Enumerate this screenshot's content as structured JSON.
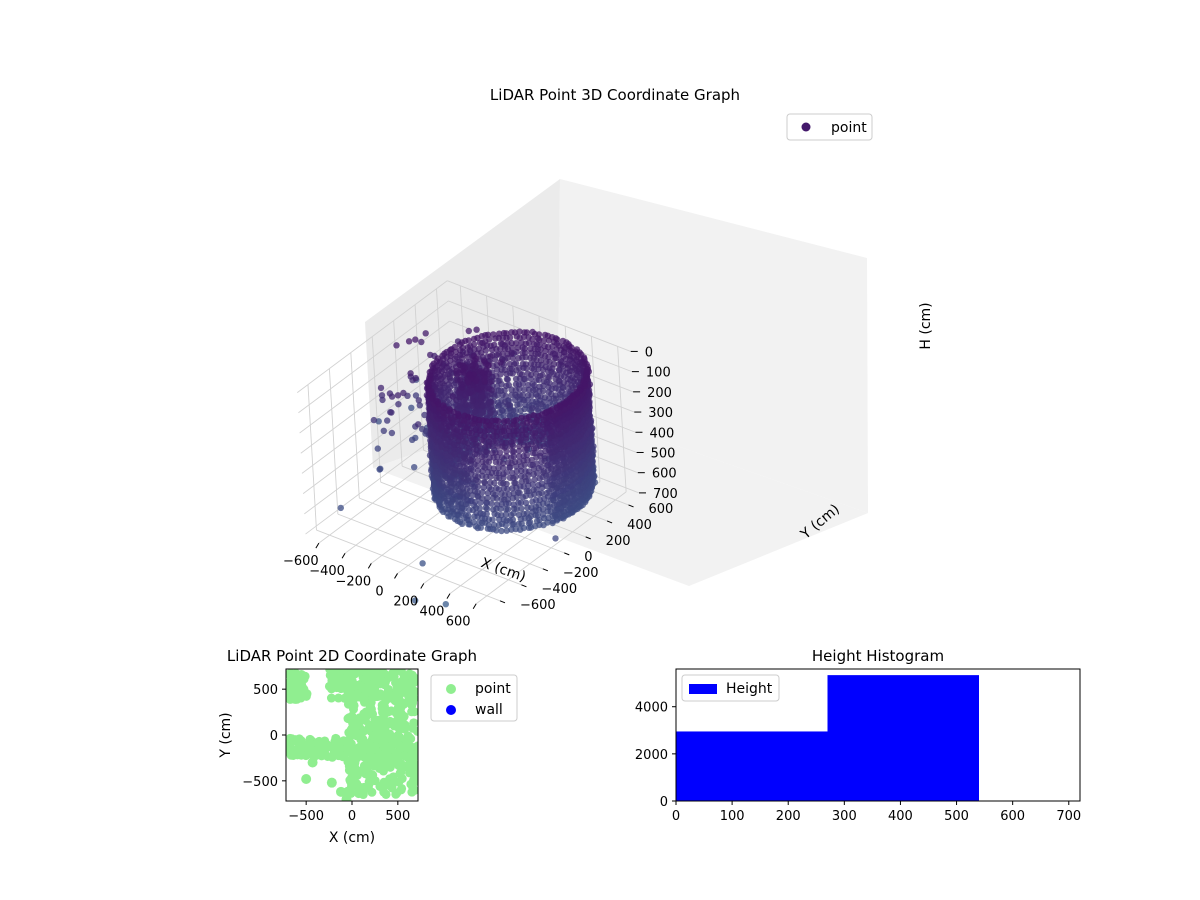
{
  "chart_data": [
    {
      "type": "scatter",
      "projection": "3d",
      "title": "LiDAR Point 3D Coordinate Graph",
      "xlabel": "X (cm)",
      "ylabel": "Y (cm)",
      "zlabel": "H (cm)",
      "xlim": [
        -700,
        700
      ],
      "ylim": [
        -700,
        700
      ],
      "zlim": [
        0,
        720
      ],
      "z_inverted": true,
      "xticks": [
        "−600",
        "−400",
        "−200",
        "0",
        "200",
        "400",
        "600"
      ],
      "yticks": [
        "−600",
        "−400",
        "−200",
        "0",
        "200",
        "400",
        "600"
      ],
      "zticks": [
        "0",
        "100",
        "200",
        "300",
        "400",
        "500",
        "600",
        "700"
      ],
      "grid": true,
      "legend": {
        "position": "upper-right",
        "entries": [
          {
            "label": "point",
            "color": "#44196b"
          }
        ]
      },
      "colormap": "viridis",
      "structure": {
        "ring": {
          "center": [
            250,
            100
          ],
          "radius": 470,
          "h_range": [
            0,
            540
          ]
        },
        "sparse_cluster": {
          "x_range": [
            -600,
            100
          ],
          "y_range": [
            -200,
            500
          ],
          "h_range": [
            0,
            540
          ]
        },
        "dense_column": {
          "center": [
            20,
            60
          ],
          "radius": 110,
          "h_range": [
            0,
            270
          ]
        }
      }
    },
    {
      "type": "scatter",
      "title": "LiDAR Point 2D Coordinate Graph",
      "xlabel": "X (cm)",
      "ylabel": "Y (cm)",
      "xlim": [
        -720,
        720
      ],
      "ylim": [
        -720,
        720
      ],
      "xticks": [
        "−500",
        "0",
        "500"
      ],
      "yticks": [
        "−500",
        "0",
        "500"
      ],
      "legend": {
        "position": "outside-right",
        "entries": [
          {
            "label": "point",
            "color": "#90ee90"
          },
          {
            "label": "wall",
            "color": "#0000ff"
          }
        ]
      },
      "series": [
        {
          "name": "point",
          "color": "#90ee90"
        },
        {
          "name": "wall",
          "color": "#0000ff",
          "count": 0
        }
      ]
    },
    {
      "type": "bar",
      "subtype": "histogram",
      "title": "Height Histogram",
      "xlabel": "",
      "ylabel": "",
      "xlim": [
        0,
        720
      ],
      "ylim": [
        0,
        5600
      ],
      "xticks": [
        "0",
        "100",
        "200",
        "300",
        "400",
        "500",
        "600",
        "700"
      ],
      "yticks": [
        "0",
        "2000",
        "4000"
      ],
      "bins": [
        [
          0,
          270
        ],
        [
          270,
          540
        ],
        [
          540,
          720
        ]
      ],
      "values": [
        2950,
        5340,
        20
      ],
      "color": "#0000ff",
      "legend": {
        "position": "upper-left",
        "entries": [
          {
            "label": "Height",
            "color": "#0000ff"
          }
        ]
      }
    }
  ]
}
